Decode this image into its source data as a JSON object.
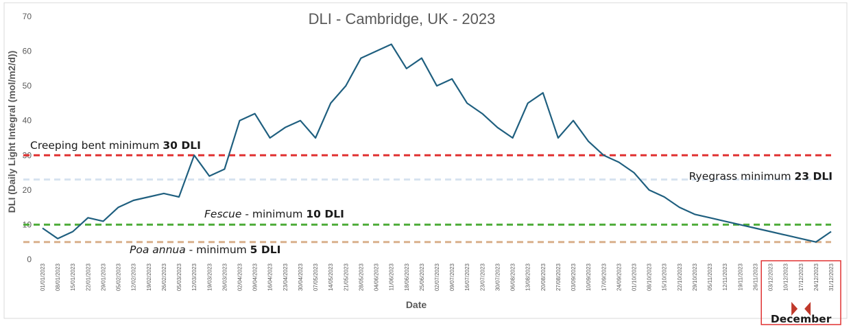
{
  "chart_data": {
    "type": "line",
    "title": "DLI - Cambridge, UK - 2023",
    "xlabel": "Date",
    "ylabel": "DLI (Daily Light Integral (mol/m2/d))",
    "ylim": [
      0,
      70
    ],
    "yticks": [
      "0",
      "10",
      "20",
      "30",
      "40",
      "50",
      "60",
      "70"
    ],
    "xlim": [
      "2023-01-01",
      "2023-12-31"
    ],
    "xtick_step_days": 7,
    "grid": false,
    "line_color": "#1f5f7f",
    "series": [
      {
        "x": [
          "2023-01-01",
          "2023-01-08",
          "2023-01-15",
          "2023-01-22",
          "2023-01-29",
          "2023-02-05",
          "2023-02-12",
          "2023-02-19",
          "2023-02-26",
          "2023-03-05",
          "2023-03-12",
          "2023-03-19",
          "2023-03-26",
          "2023-04-02",
          "2023-04-09",
          "2023-04-16",
          "2023-04-23",
          "2023-04-30",
          "2023-05-07",
          "2023-05-14",
          "2023-05-21",
          "2023-05-28",
          "2023-06-04",
          "2023-06-11",
          "2023-06-18",
          "2023-06-25",
          "2023-07-02",
          "2023-07-09",
          "2023-07-16",
          "2023-07-23",
          "2023-07-30",
          "2023-08-06",
          "2023-08-13",
          "2023-08-20",
          "2023-08-27",
          "2023-09-03",
          "2023-09-10",
          "2023-09-17",
          "2023-09-24",
          "2023-10-01",
          "2023-10-08",
          "2023-10-15",
          "2023-10-22",
          "2023-10-29",
          "2023-11-05",
          "2023-11-12",
          "2023-11-19",
          "2023-11-26",
          "2023-12-03",
          "2023-12-10",
          "2023-12-17",
          "2023-12-24",
          "2023-12-31"
        ],
        "y": [
          9,
          6,
          8,
          12,
          11,
          15,
          17,
          18,
          19,
          18,
          30,
          24,
          26,
          40,
          42,
          35,
          38,
          40,
          35,
          45,
          50,
          58,
          60,
          62,
          55,
          58,
          50,
          52,
          45,
          42,
          38,
          35,
          45,
          48,
          35,
          40,
          34,
          30,
          28,
          25,
          20,
          18,
          15,
          13,
          12,
          11,
          10,
          9,
          8,
          7,
          6,
          5,
          8
        ]
      }
    ],
    "reference_lines": [
      {
        "value": 30,
        "color": "#e03030"
      },
      {
        "value": 23,
        "color": "#d6e2ef"
      },
      {
        "value": 10,
        "color": "#4fad3a"
      },
      {
        "value": 5,
        "color": "#d9b08c"
      }
    ],
    "annotations": [
      {
        "prefix": "Creeping bent minimum ",
        "bold": "30 DLI"
      },
      {
        "prefix": "Ryegrass minimum ",
        "bold": "23 DLI"
      },
      {
        "italic": "Fescue",
        "middle": " - minimum ",
        "bold": "10 DLI"
      },
      {
        "italic": "Poa annua",
        "middle": " - minimum ",
        "bold": "5 DLI"
      }
    ],
    "highlight": {
      "label": "December",
      "from": "2023-12-01",
      "to": "2023-12-31",
      "color": "#e03030"
    }
  }
}
